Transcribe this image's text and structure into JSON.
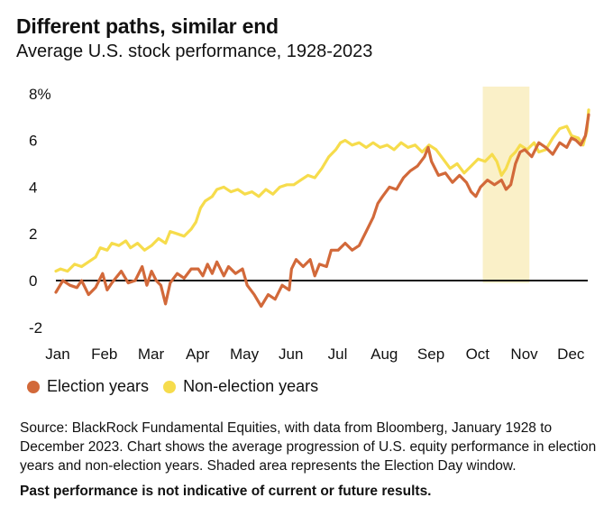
{
  "header": {
    "title": "Different paths, similar end",
    "subtitle": "Average U.S. stock performance, 1928-2023"
  },
  "chart_data": {
    "type": "line",
    "title": "Different paths, similar end",
    "subtitle": "Average U.S. stock performance, 1928-2023",
    "x_labels": [
      "Jan",
      "Feb",
      "Mar",
      "Apr",
      "May",
      "Jun",
      "Jul",
      "Aug",
      "Sep",
      "Oct",
      "Nov",
      "Dec"
    ],
    "y_tick_labels": [
      "8%",
      "6",
      "4",
      "2",
      "0",
      "-2"
    ],
    "y_ticks": [
      8,
      6,
      4,
      2,
      0,
      -2
    ],
    "ylim": [
      -2.2,
      8.3
    ],
    "xlim": [
      0,
      11.4
    ],
    "grid": false,
    "zero_line": true,
    "legend_position": "bottom-left",
    "shaded_region": {
      "x_start": 9.15,
      "x_end": 10.15,
      "color": "#faf0c8"
    },
    "series": [
      {
        "name": "Election years",
        "color": "#d2693a",
        "points": [
          [
            0.0,
            -0.5
          ],
          [
            0.15,
            0.0
          ],
          [
            0.3,
            -0.2
          ],
          [
            0.45,
            -0.3
          ],
          [
            0.55,
            0.0
          ],
          [
            0.7,
            -0.6
          ],
          [
            0.85,
            -0.3
          ],
          [
            1.0,
            0.3
          ],
          [
            1.1,
            -0.4
          ],
          [
            1.2,
            -0.1
          ],
          [
            1.4,
            0.4
          ],
          [
            1.55,
            -0.1
          ],
          [
            1.7,
            0.0
          ],
          [
            1.85,
            0.6
          ],
          [
            1.95,
            -0.2
          ],
          [
            2.05,
            0.4
          ],
          [
            2.15,
            0.0
          ],
          [
            2.25,
            -0.2
          ],
          [
            2.35,
            -1.0
          ],
          [
            2.45,
            -0.1
          ],
          [
            2.6,
            0.3
          ],
          [
            2.75,
            0.1
          ],
          [
            2.9,
            0.5
          ],
          [
            3.05,
            0.5
          ],
          [
            3.15,
            0.2
          ],
          [
            3.25,
            0.7
          ],
          [
            3.35,
            0.3
          ],
          [
            3.45,
            0.8
          ],
          [
            3.6,
            0.2
          ],
          [
            3.7,
            0.6
          ],
          [
            3.85,
            0.3
          ],
          [
            4.0,
            0.5
          ],
          [
            4.1,
            -0.2
          ],
          [
            4.25,
            -0.6
          ],
          [
            4.4,
            -1.1
          ],
          [
            4.55,
            -0.6
          ],
          [
            4.7,
            -0.8
          ],
          [
            4.85,
            -0.2
          ],
          [
            5.0,
            -0.4
          ],
          [
            5.05,
            0.5
          ],
          [
            5.15,
            0.9
          ],
          [
            5.3,
            0.6
          ],
          [
            5.45,
            0.9
          ],
          [
            5.55,
            0.2
          ],
          [
            5.65,
            0.7
          ],
          [
            5.8,
            0.6
          ],
          [
            5.9,
            1.3
          ],
          [
            6.05,
            1.3
          ],
          [
            6.2,
            1.6
          ],
          [
            6.35,
            1.3
          ],
          [
            6.5,
            1.5
          ],
          [
            6.65,
            2.1
          ],
          [
            6.8,
            2.7
          ],
          [
            6.9,
            3.3
          ],
          [
            7.0,
            3.6
          ],
          [
            7.15,
            4.0
          ],
          [
            7.3,
            3.9
          ],
          [
            7.45,
            4.4
          ],
          [
            7.6,
            4.7
          ],
          [
            7.75,
            4.9
          ],
          [
            7.9,
            5.3
          ],
          [
            7.98,
            5.7
          ],
          [
            8.05,
            5.1
          ],
          [
            8.2,
            4.5
          ],
          [
            8.35,
            4.6
          ],
          [
            8.5,
            4.2
          ],
          [
            8.65,
            4.5
          ],
          [
            8.8,
            4.2
          ],
          [
            8.9,
            3.8
          ],
          [
            9.0,
            3.6
          ],
          [
            9.1,
            4.0
          ],
          [
            9.25,
            4.3
          ],
          [
            9.4,
            4.1
          ],
          [
            9.55,
            4.3
          ],
          [
            9.65,
            3.9
          ],
          [
            9.75,
            4.1
          ],
          [
            9.85,
            5.0
          ],
          [
            9.95,
            5.5
          ],
          [
            10.05,
            5.6
          ],
          [
            10.2,
            5.3
          ],
          [
            10.35,
            5.9
          ],
          [
            10.5,
            5.7
          ],
          [
            10.65,
            5.4
          ],
          [
            10.8,
            5.9
          ],
          [
            10.95,
            5.7
          ],
          [
            11.05,
            6.1
          ],
          [
            11.15,
            6.0
          ],
          [
            11.25,
            5.8
          ],
          [
            11.35,
            6.2
          ],
          [
            11.42,
            7.1
          ]
        ]
      },
      {
        "name": "Non-election years",
        "color": "#f6dc4c",
        "points": [
          [
            0.0,
            0.4
          ],
          [
            0.1,
            0.5
          ],
          [
            0.25,
            0.4
          ],
          [
            0.4,
            0.7
          ],
          [
            0.55,
            0.6
          ],
          [
            0.7,
            0.8
          ],
          [
            0.85,
            1.0
          ],
          [
            0.95,
            1.4
          ],
          [
            1.1,
            1.3
          ],
          [
            1.2,
            1.6
          ],
          [
            1.35,
            1.5
          ],
          [
            1.5,
            1.7
          ],
          [
            1.6,
            1.4
          ],
          [
            1.75,
            1.6
          ],
          [
            1.9,
            1.3
          ],
          [
            2.05,
            1.5
          ],
          [
            2.2,
            1.8
          ],
          [
            2.35,
            1.6
          ],
          [
            2.45,
            2.1
          ],
          [
            2.6,
            2.0
          ],
          [
            2.75,
            1.9
          ],
          [
            2.9,
            2.2
          ],
          [
            3.0,
            2.5
          ],
          [
            3.1,
            3.1
          ],
          [
            3.2,
            3.4
          ],
          [
            3.35,
            3.6
          ],
          [
            3.45,
            3.9
          ],
          [
            3.6,
            4.0
          ],
          [
            3.75,
            3.8
          ],
          [
            3.9,
            3.9
          ],
          [
            4.05,
            3.7
          ],
          [
            4.2,
            3.8
          ],
          [
            4.35,
            3.6
          ],
          [
            4.5,
            3.9
          ],
          [
            4.65,
            3.7
          ],
          [
            4.8,
            4.0
          ],
          [
            4.95,
            4.1
          ],
          [
            5.1,
            4.1
          ],
          [
            5.25,
            4.3
          ],
          [
            5.4,
            4.5
          ],
          [
            5.55,
            4.4
          ],
          [
            5.7,
            4.8
          ],
          [
            5.85,
            5.3
          ],
          [
            6.0,
            5.6
          ],
          [
            6.1,
            5.9
          ],
          [
            6.2,
            6.0
          ],
          [
            6.35,
            5.8
          ],
          [
            6.5,
            5.9
          ],
          [
            6.65,
            5.7
          ],
          [
            6.8,
            5.9
          ],
          [
            6.95,
            5.7
          ],
          [
            7.1,
            5.8
          ],
          [
            7.25,
            5.6
          ],
          [
            7.4,
            5.9
          ],
          [
            7.55,
            5.7
          ],
          [
            7.7,
            5.8
          ],
          [
            7.85,
            5.5
          ],
          [
            8.0,
            5.8
          ],
          [
            8.15,
            5.6
          ],
          [
            8.3,
            5.2
          ],
          [
            8.45,
            4.8
          ],
          [
            8.6,
            5.0
          ],
          [
            8.75,
            4.6
          ],
          [
            8.9,
            4.9
          ],
          [
            9.05,
            5.2
          ],
          [
            9.2,
            5.1
          ],
          [
            9.35,
            5.4
          ],
          [
            9.45,
            5.1
          ],
          [
            9.55,
            4.5
          ],
          [
            9.65,
            4.8
          ],
          [
            9.75,
            5.3
          ],
          [
            9.85,
            5.5
          ],
          [
            9.95,
            5.8
          ],
          [
            10.1,
            5.6
          ],
          [
            10.25,
            5.9
          ],
          [
            10.35,
            5.5
          ],
          [
            10.5,
            5.6
          ],
          [
            10.65,
            6.1
          ],
          [
            10.8,
            6.5
          ],
          [
            10.95,
            6.6
          ],
          [
            11.05,
            6.2
          ],
          [
            11.2,
            6.1
          ],
          [
            11.3,
            5.8
          ],
          [
            11.38,
            6.4
          ],
          [
            11.42,
            7.3
          ]
        ]
      }
    ]
  },
  "legend": {
    "election_label": "Election years",
    "nonelection_label": "Non-election years"
  },
  "footer": {
    "source": "Source: BlackRock Fundamental Equities, with data from Bloomberg, January 1928 to December 2023. Chart shows the average progression of U.S. equity performance in election years and non-election years. Shaded area represents the Election Day window.",
    "note": "Past performance is not indicative of current or future results."
  }
}
